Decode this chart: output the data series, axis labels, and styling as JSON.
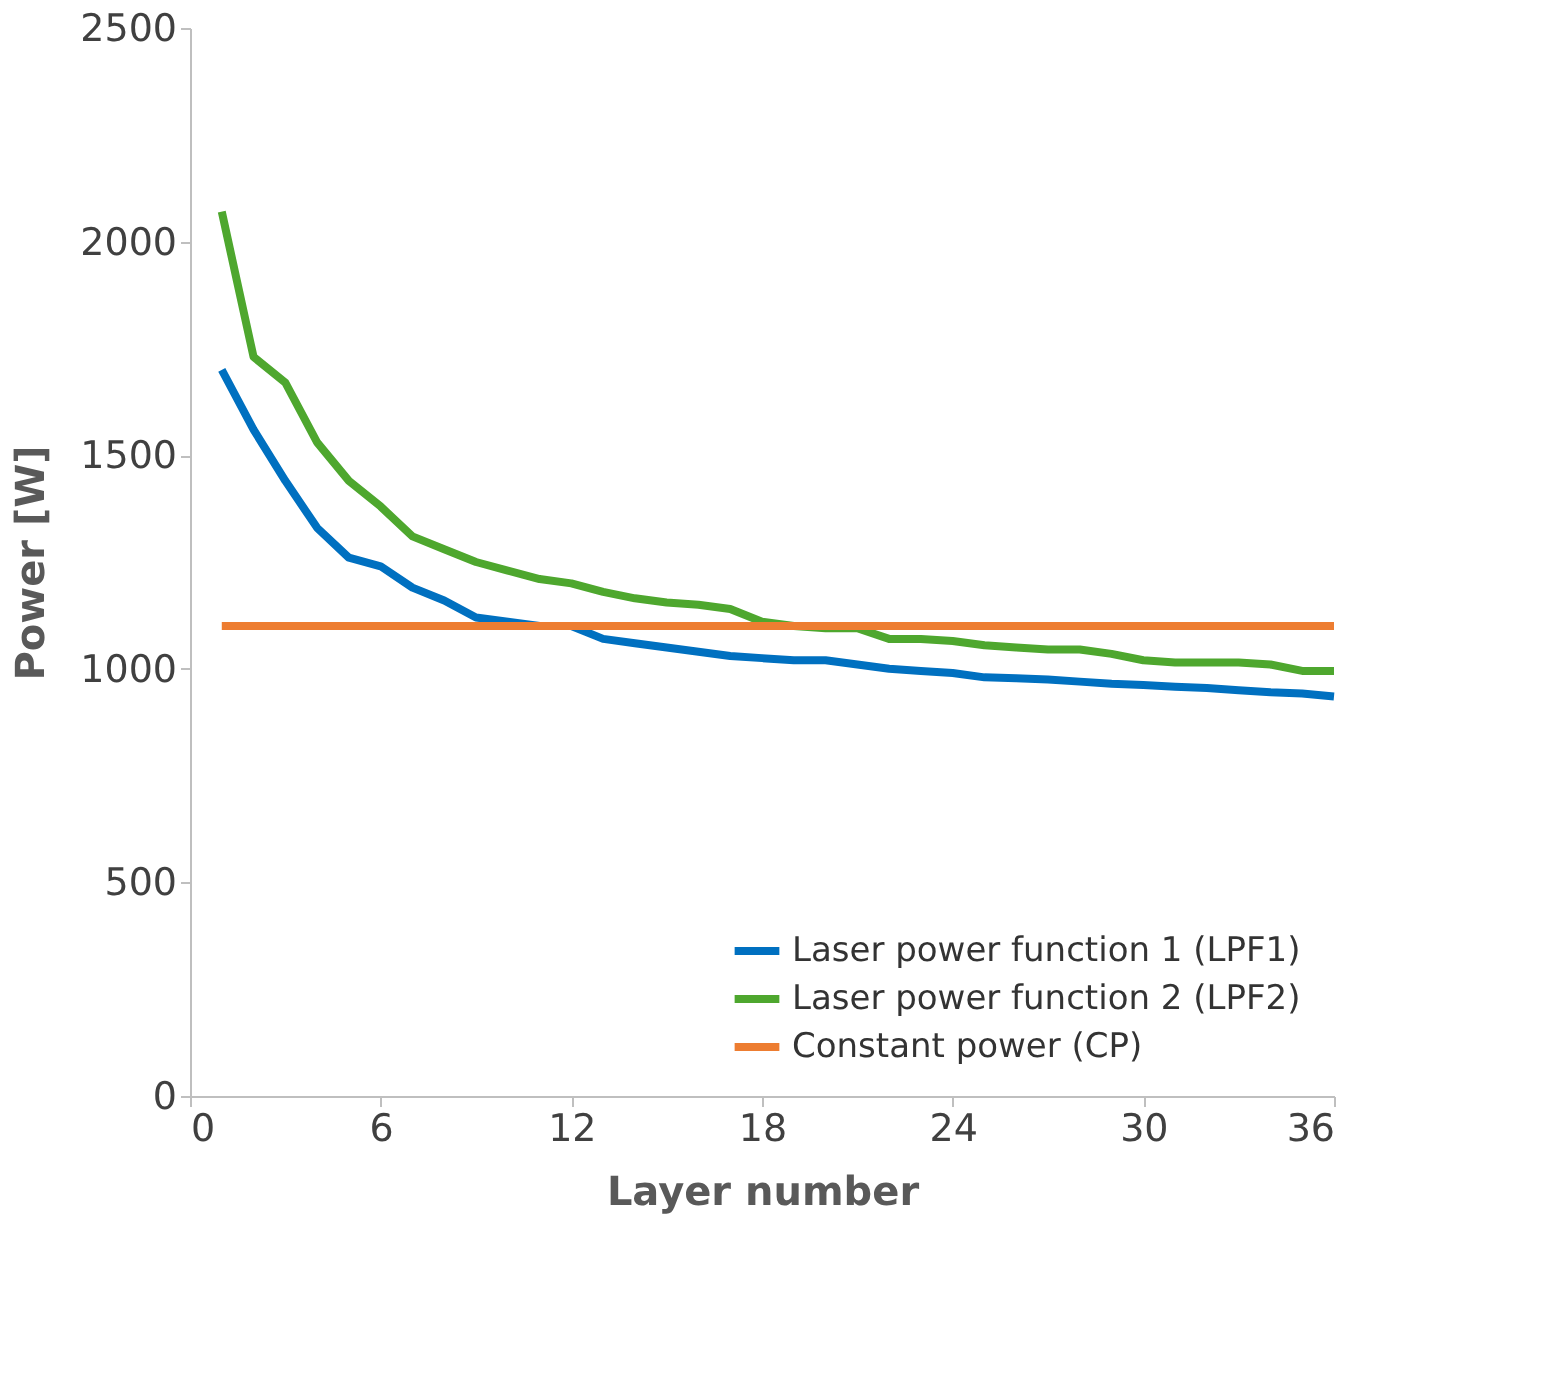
{
  "chart_data": {
    "type": "line",
    "xlabel": "Layer number",
    "ylabel": "Power [W]",
    "x": [
      1,
      2,
      3,
      4,
      5,
      6,
      7,
      8,
      9,
      10,
      11,
      12,
      13,
      14,
      15,
      16,
      17,
      18,
      19,
      20,
      21,
      22,
      23,
      24,
      25,
      26,
      27,
      28,
      29,
      30,
      31,
      32,
      33,
      34,
      35,
      36
    ],
    "series": [
      {
        "name": "Laser power function 1 (LPF1)",
        "color": "#0070c0",
        "values": [
          1700,
          1560,
          1440,
          1330,
          1260,
          1240,
          1190,
          1160,
          1120,
          1110,
          1100,
          1100,
          1070,
          1060,
          1050,
          1040,
          1030,
          1025,
          1020,
          1020,
          1010,
          1000,
          995,
          990,
          980,
          978,
          975,
          970,
          965,
          962,
          958,
          955,
          950,
          945,
          942,
          935
        ]
      },
      {
        "name": "Laser power function 2 (LPF2)",
        "color": "#4ea72e",
        "values": [
          2070,
          1730,
          1670,
          1530,
          1440,
          1380,
          1310,
          1280,
          1250,
          1230,
          1210,
          1200,
          1180,
          1165,
          1155,
          1150,
          1140,
          1110,
          1100,
          1095,
          1095,
          1070,
          1070,
          1065,
          1055,
          1050,
          1045,
          1045,
          1035,
          1020,
          1015,
          1015,
          1015,
          1010,
          995,
          995
        ]
      },
      {
        "name": "Constant power (CP)",
        "color": "#ed7d31",
        "values": [
          1100,
          1100,
          1100,
          1100,
          1100,
          1100,
          1100,
          1100,
          1100,
          1100,
          1100,
          1100,
          1100,
          1100,
          1100,
          1100,
          1100,
          1100,
          1100,
          1100,
          1100,
          1100,
          1100,
          1100,
          1100,
          1100,
          1100,
          1100,
          1100,
          1100,
          1100,
          1100,
          1100,
          1100,
          1100,
          1100
        ]
      }
    ],
    "xlim": [
      0,
      36
    ],
    "xticks": [
      0,
      6,
      12,
      18,
      24,
      30,
      36
    ],
    "ylim": [
      0,
      2500
    ],
    "yticks": [
      0,
      500,
      1000,
      1500,
      2000,
      2500
    ],
    "grid": false,
    "legend": "bottom right",
    "marker": "none",
    "line_style": "solid"
  }
}
